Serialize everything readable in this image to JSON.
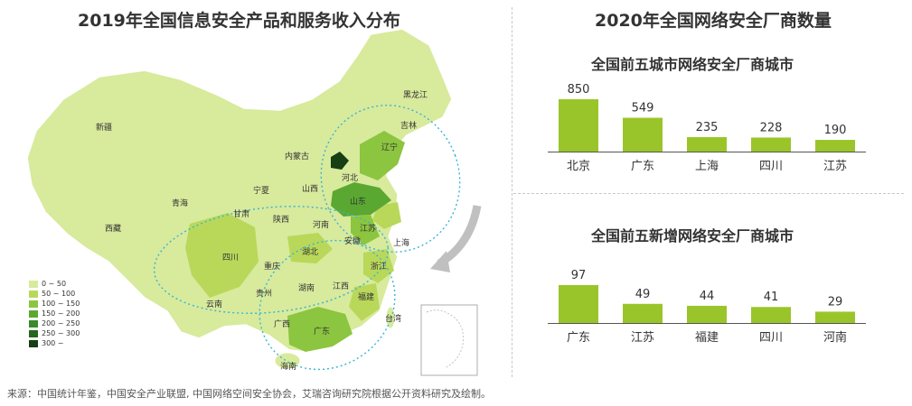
{
  "map_title": "2019年全国信息安全产品和服务收入分布",
  "right_title": "2020年全国网络安全厂商数量",
  "legend": {
    "items": [
      {
        "label": "0 ~ 50",
        "color": "#d8ea9c"
      },
      {
        "label": "50 ~ 100",
        "color": "#b9d85a"
      },
      {
        "label": "100 ~ 150",
        "color": "#8cc53f"
      },
      {
        "label": "150 ~ 200",
        "color": "#5aa832"
      },
      {
        "label": "200 ~ 250",
        "color": "#3a8a2a"
      },
      {
        "label": "250 ~ 300",
        "color": "#26661f"
      },
      {
        "label": "300 ~",
        "color": "#163f14"
      }
    ]
  },
  "map_labels": {
    "heilongjiang": "黑龙江",
    "jilin": "吉林",
    "liaoning": "辽宁",
    "xinjiang": "新疆",
    "neimenggu": "内蒙古",
    "hebei": "河北",
    "ningxia": "宁夏",
    "shanxi": "山西",
    "shandong": "山东",
    "qinghai": "青海",
    "gansu": "甘肃",
    "shaanxi": "陕西",
    "henan": "河南",
    "jiangsu": "江苏",
    "shanghai": "上海",
    "xizang": "西藏",
    "sichuan": "四川",
    "hubei": "湖北",
    "anhui": "安徽",
    "chongqing": "重庆",
    "zhejiang": "浙江",
    "guizhou": "贵州",
    "hunan": "湖南",
    "jiangxi": "江西",
    "fujian": "福建",
    "yunnan": "云南",
    "guangxi": "广西",
    "guangdong": "广东",
    "taiwan": "台湾",
    "hainan": "海南"
  },
  "chart_data": [
    {
      "type": "bar",
      "title": "全国前五城市网络安全厂商城市",
      "categories": [
        "北京",
        "广东",
        "上海",
        "四川",
        "江苏"
      ],
      "values": [
        850,
        549,
        235,
        228,
        190
      ],
      "color": "#9ac52a",
      "ylim": [
        0,
        850
      ]
    },
    {
      "type": "bar",
      "title": "全国前五新增网络安全厂商城市",
      "categories": [
        "广东",
        "江苏",
        "福建",
        "四川",
        "河南"
      ],
      "values": [
        97,
        49,
        44,
        41,
        29
      ],
      "color": "#9ac52a",
      "ylim": [
        0,
        97
      ]
    }
  ],
  "source": "来源：中国统计年鉴，中国安全产业联盟, 中国网络空间安全协会，艾瑞咨询研究院根据公开资料研究及绘制。"
}
